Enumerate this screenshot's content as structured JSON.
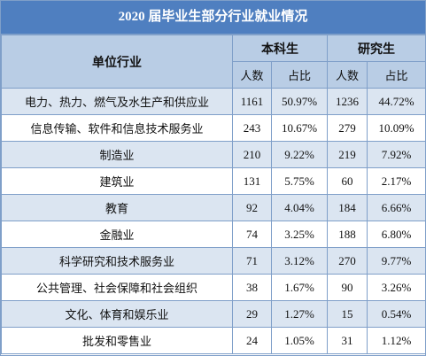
{
  "title": "2020 届毕业生部分行业就业情况",
  "header": {
    "industry": "单位行业",
    "groups": [
      "本科生",
      "研究生"
    ],
    "subcolumns": [
      "人数",
      "占比",
      "人数",
      "占比"
    ]
  },
  "table": {
    "rows": [
      [
        "电力、热力、燃气及水生产和供应业",
        "1161",
        "50.97%",
        "1236",
        "44.72%"
      ],
      [
        "信息传输、软件和信息技术服务业",
        "243",
        "10.67%",
        "279",
        "10.09%"
      ],
      [
        "制造业",
        "210",
        "9.22%",
        "219",
        "7.92%"
      ],
      [
        "建筑业",
        "131",
        "5.75%",
        "60",
        "2.17%"
      ],
      [
        "教育",
        "92",
        "4.04%",
        "184",
        "6.66%"
      ],
      [
        "金融业",
        "74",
        "3.25%",
        "188",
        "6.80%"
      ],
      [
        "科学研究和技术服务业",
        "71",
        "3.12%",
        "270",
        "9.77%"
      ],
      [
        "公共管理、社会保障和社会组织",
        "38",
        "1.67%",
        "90",
        "3.26%"
      ],
      [
        "文化、体育和娱乐业",
        "29",
        "1.27%",
        "15",
        "0.54%"
      ],
      [
        "批发和零售业",
        "24",
        "1.05%",
        "31",
        "1.12%"
      ]
    ]
  }
}
